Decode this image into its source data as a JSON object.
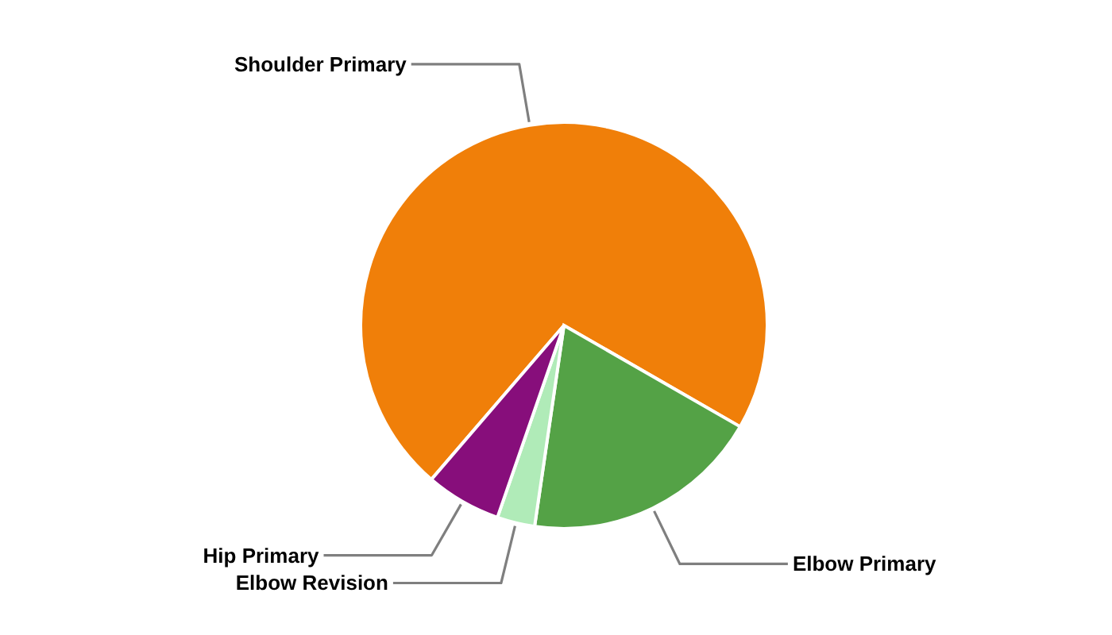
{
  "chart_data": {
    "type": "pie",
    "categories": [
      "Shoulder Primary",
      "Elbow Primary",
      "Elbow Revision",
      "Hip Primary"
    ],
    "values": [
      72,
      19,
      3,
      6
    ],
    "colors": [
      "#f07f09",
      "#54a246",
      "#b0ebb8",
      "#870e7b"
    ]
  }
}
